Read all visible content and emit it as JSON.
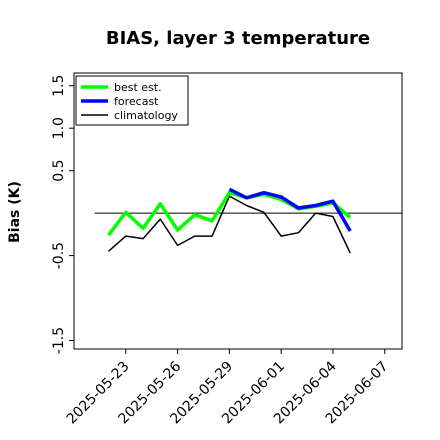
{
  "chart_data": {
    "type": "line",
    "title": "BIAS, layer 3 temperature",
    "ylabel": "Bias (K)",
    "xlabel": "",
    "ylim": [
      -1.6,
      1.65
    ],
    "y_ticks": [
      "-1.5",
      "-0.5",
      "0.5",
      "1.0",
      "1.5"
    ],
    "y_tick_values": [
      -1.5,
      -0.5,
      0.5,
      1.0,
      1.5
    ],
    "x_range": [
      "2025-05-20",
      "2025-06-08"
    ],
    "x_ticks": [
      "2025-05-23",
      "2025-05-26",
      "2025-05-29",
      "2025-06-01",
      "2025-06-04",
      "2025-06-07"
    ],
    "highlight_tick": "2025-05-29",
    "highlight_color": "#228B22",
    "zero_line": 0,
    "legend_position": "upper-left",
    "series": [
      {
        "name": "best est.",
        "color": "#00ff00",
        "dates": [
          "2025-05-22",
          "2025-05-23",
          "2025-05-24",
          "2025-05-25",
          "2025-05-26",
          "2025-05-27",
          "2025-05-28",
          "2025-05-29",
          "2025-05-30",
          "2025-05-31",
          "2025-06-01",
          "2025-06-02",
          "2025-06-03",
          "2025-06-04",
          "2025-06-05"
        ],
        "values": [
          -0.26,
          0.01,
          -0.18,
          0.11,
          -0.2,
          -0.02,
          -0.09,
          0.24,
          0.18,
          0.22,
          0.16,
          0.05,
          0.08,
          0.12,
          -0.05
        ]
      },
      {
        "name": "forecast",
        "color": "#0000ff",
        "dates": [
          "2025-05-29",
          "2025-05-30",
          "2025-05-31",
          "2025-06-01",
          "2025-06-02",
          "2025-06-03",
          "2025-06-04",
          "2025-06-05"
        ],
        "values": [
          0.28,
          0.18,
          0.24,
          0.19,
          0.06,
          0.09,
          0.14,
          -0.21
        ]
      },
      {
        "name": "climatology",
        "color": "#000000",
        "dates": [
          "2025-05-22",
          "2025-05-23",
          "2025-05-24",
          "2025-05-25",
          "2025-05-26",
          "2025-05-27",
          "2025-05-28",
          "2025-05-29",
          "2025-05-30",
          "2025-05-31",
          "2025-06-01",
          "2025-06-02",
          "2025-06-03",
          "2025-06-04",
          "2025-06-05"
        ],
        "values": [
          -0.45,
          -0.27,
          -0.3,
          -0.07,
          -0.38,
          -0.27,
          -0.27,
          0.2,
          0.09,
          0.01,
          -0.27,
          -0.23,
          0.0,
          -0.04,
          -0.47
        ]
      }
    ]
  }
}
